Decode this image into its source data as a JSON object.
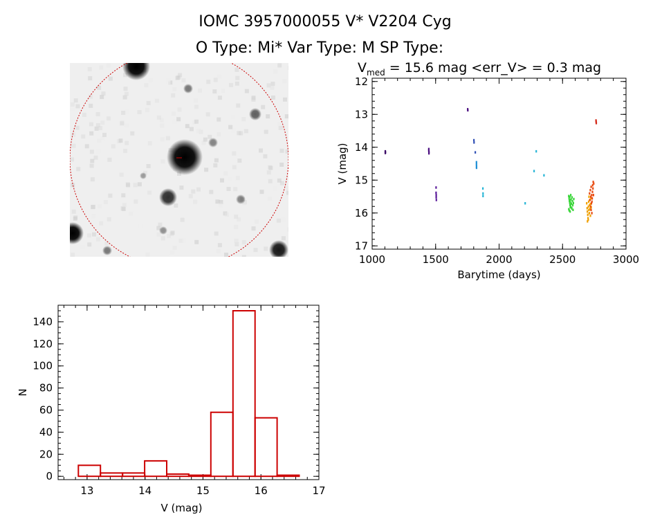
{
  "header": {
    "title": "IOMC 3957000055    V* V2204 Cyg",
    "subtitle": "O Type: Mi*  Var Type: M   SP Type:"
  },
  "stats": {
    "vmed_symbol": "V",
    "vmed_sub": "med",
    "vmed_text": " = 15.6 mag <err_V> = 0.3 mag"
  },
  "image_panel": {
    "background": "#efefef",
    "circle_color": "#cc0000"
  },
  "chart_data": [
    {
      "type": "scatter",
      "xlabel": "Barytime (days)",
      "ylabel": "V (mag)",
      "xlim": [
        1000,
        3000
      ],
      "ylim": [
        17.1,
        11.9
      ],
      "y_inverted": true,
      "xticks": [
        1000,
        1500,
        2000,
        2500,
        3000
      ],
      "yticks": [
        12,
        13,
        14,
        15,
        16,
        17
      ],
      "grid": false,
      "series": [
        {
          "color": "#3b0a66",
          "points": [
            [
              1103,
              14.12
            ],
            [
              1103,
              14.17
            ],
            [
              1104,
              14.15
            ]
          ]
        },
        {
          "color": "#4b0f80",
          "points": [
            [
              1446,
              14.05
            ],
            [
              1446,
              14.1
            ],
            [
              1447,
              14.14
            ],
            [
              1447,
              14.18
            ],
            [
              1752,
              12.84
            ],
            [
              1753,
              12.87
            ]
          ]
        },
        {
          "color": "#5a1a9a",
          "points": [
            [
              1503,
              15.22
            ],
            [
              1503,
              15.38
            ],
            [
              1504,
              15.45
            ],
            [
              1504,
              15.52
            ],
            [
              1505,
              15.6
            ]
          ]
        },
        {
          "color": "#2f4fb5",
          "points": [
            [
              1801,
              13.78
            ],
            [
              1802,
              13.85
            ],
            [
              1812,
              14.15
            ]
          ]
        },
        {
          "color": "#1e8fd6",
          "points": [
            [
              1821,
              14.45
            ],
            [
              1821,
              14.52
            ],
            [
              1822,
              14.58
            ],
            [
              1822,
              14.62
            ]
          ]
        },
        {
          "color": "#26b5d6",
          "points": [
            [
              1872,
              15.25
            ],
            [
              1873,
              15.4
            ],
            [
              1873,
              15.48
            ],
            [
              2205,
              15.7
            ],
            [
              2275,
              14.72
            ],
            [
              2292,
              14.12
            ],
            [
              2353,
              14.85
            ]
          ]
        },
        {
          "color": "#3bd63b",
          "points": [
            [
              2548,
              15.48
            ],
            [
              2551,
              15.55
            ],
            [
              2553,
              15.62
            ],
            [
              2556,
              15.68
            ],
            [
              2558,
              15.75
            ],
            [
              2561,
              15.82
            ],
            [
              2549,
              15.88
            ],
            [
              2552,
              15.92
            ],
            [
              2555,
              15.6
            ],
            [
              2557,
              15.5
            ],
            [
              2560,
              15.66
            ],
            [
              2563,
              15.79
            ],
            [
              2566,
              15.58
            ],
            [
              2569,
              15.71
            ],
            [
              2571,
              15.84
            ],
            [
              2574,
              15.52
            ],
            [
              2577,
              15.63
            ],
            [
              2580,
              15.76
            ],
            [
              2582,
              15.9
            ],
            [
              2585,
              15.69
            ],
            [
              2588,
              15.57
            ],
            [
              2559,
              15.95
            ],
            [
              2564,
              15.45
            ],
            [
              2572,
              15.86
            ]
          ]
        },
        {
          "color": "#f0a000",
          "points": [
            [
              2690,
              15.7
            ],
            [
              2693,
              15.85
            ],
            [
              2695,
              15.95
            ],
            [
              2698,
              16.05
            ],
            [
              2700,
              16.15
            ],
            [
              2703,
              15.8
            ],
            [
              2705,
              15.65
            ],
            [
              2707,
              15.9
            ],
            [
              2710,
              16.0
            ],
            [
              2712,
              15.75
            ],
            [
              2714,
              15.6
            ],
            [
              2716,
              15.88
            ],
            [
              2719,
              16.08
            ],
            [
              2721,
              15.72
            ],
            [
              2723,
              15.55
            ],
            [
              2725,
              15.82
            ],
            [
              2696,
              16.25
            ],
            [
              2702,
              16.2
            ],
            [
              2708,
              15.5
            ]
          ]
        },
        {
          "color": "#e84a10",
          "points": [
            [
              2712,
              15.4
            ],
            [
              2715,
              15.6
            ],
            [
              2718,
              15.3
            ],
            [
              2720,
              15.8
            ],
            [
              2722,
              15.5
            ],
            [
              2725,
              15.2
            ],
            [
              2727,
              15.7
            ],
            [
              2729,
              15.45
            ],
            [
              2731,
              15.65
            ],
            [
              2733,
              15.55
            ],
            [
              2735,
              15.35
            ],
            [
              2737,
              15.15
            ],
            [
              2739,
              15.25
            ],
            [
              2741,
              15.05
            ],
            [
              2743,
              15.45
            ],
            [
              2745,
              15.1
            ],
            [
              2724,
              15.9
            ],
            [
              2730,
              16.0
            ]
          ]
        },
        {
          "color": "#d42a1a",
          "points": [
            [
              2763,
              13.18
            ],
            [
              2764,
              13.22
            ],
            [
              2765,
              13.26
            ]
          ]
        }
      ]
    },
    {
      "type": "bar",
      "style": "histogram",
      "xlabel": "V (mag)",
      "ylabel": "N",
      "xlim": [
        12.5,
        17
      ],
      "ylim": [
        -3,
        155
      ],
      "xticks": [
        13,
        14,
        15,
        16,
        17
      ],
      "yticks": [
        0,
        20,
        40,
        60,
        80,
        100,
        120,
        140
      ],
      "bar_color": "#cc0000",
      "bin_width": 0.381,
      "bin_edges_start": 12.85,
      "values": [
        10,
        3,
        3,
        14,
        2,
        1,
        58,
        150,
        53,
        1
      ]
    }
  ]
}
